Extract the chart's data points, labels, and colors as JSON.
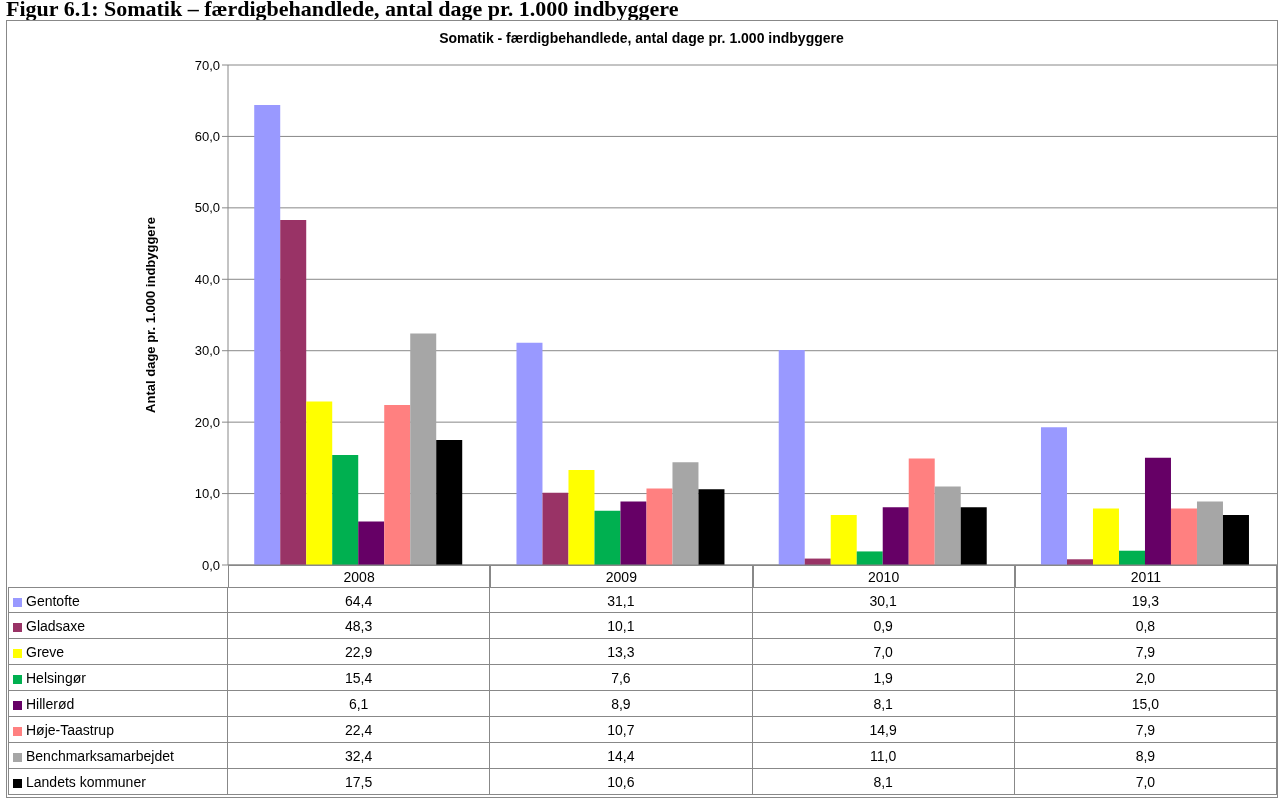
{
  "chart_data": {
    "type": "bar",
    "title": "Somatik - færdigbehandlede, antal dage pr. 1.000 indbyggere",
    "ylabel": "Antal dage pr. 1.000 indbyggere",
    "annotations": [
      "Figur 6.1: Somatik – færdigbehandlede, antal dage pr. 1.000 indbyggere"
    ],
    "categories": [
      "2008",
      "2009",
      "2010",
      "2011"
    ],
    "ylim": [
      0,
      70
    ],
    "yticks": [
      {
        "value": 0,
        "label": "0,0"
      },
      {
        "value": 10,
        "label": "10,0"
      },
      {
        "value": 20,
        "label": "20,0"
      },
      {
        "value": 30,
        "label": "30,0"
      },
      {
        "value": 40,
        "label": "40,0"
      },
      {
        "value": 50,
        "label": "50,0"
      },
      {
        "value": 60,
        "label": "60,0"
      },
      {
        "value": 70,
        "label": "70,0"
      }
    ],
    "grid": "y",
    "legend": "bottom",
    "series": [
      {
        "name": "Gentofte",
        "color": "#9999ff",
        "values": [
          64.4,
          31.1,
          30.1,
          19.3
        ],
        "value_labels": [
          "64,4",
          "31,1",
          "30,1",
          "19,3"
        ]
      },
      {
        "name": "Gladsaxe",
        "color": "#993366",
        "values": [
          48.3,
          10.1,
          0.9,
          0.8
        ],
        "value_labels": [
          "48,3",
          "10,1",
          "0,9",
          "0,8"
        ]
      },
      {
        "name": "Greve",
        "color": "#ffff00",
        "values": [
          22.9,
          13.3,
          7.0,
          7.9
        ],
        "value_labels": [
          "22,9",
          "13,3",
          "7,0",
          "7,9"
        ]
      },
      {
        "name": "Helsingør",
        "color": "#00b050",
        "values": [
          15.4,
          7.6,
          1.9,
          2.0
        ],
        "value_labels": [
          "15,4",
          "7,6",
          "1,9",
          "2,0"
        ]
      },
      {
        "name": "Hillerød",
        "color": "#660066",
        "values": [
          6.1,
          8.9,
          8.1,
          15.0
        ],
        "value_labels": [
          "6,1",
          "8,9",
          "8,1",
          "15,0"
        ]
      },
      {
        "name": "Høje-Taastrup",
        "color": "#ff8080",
        "values": [
          22.4,
          10.7,
          14.9,
          7.9
        ],
        "value_labels": [
          "22,4",
          "10,7",
          "14,9",
          "7,9"
        ]
      },
      {
        "name": "Benchmarksamarbejdet",
        "color": "#a6a6a6",
        "values": [
          32.4,
          14.4,
          11.0,
          8.9
        ],
        "value_labels": [
          "32,4",
          "14,4",
          "11,0",
          "8,9"
        ]
      },
      {
        "name": "Landets kommuner",
        "color": "#000000",
        "values": [
          17.5,
          10.6,
          8.1,
          7.0
        ],
        "value_labels": [
          "17,5",
          "10,6",
          "8,1",
          "7,0"
        ]
      }
    ]
  }
}
